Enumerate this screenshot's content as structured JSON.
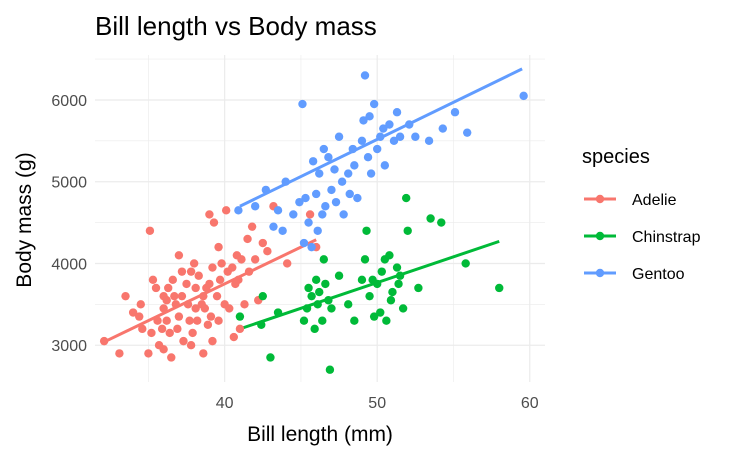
{
  "chart_data": {
    "type": "scatter",
    "title": "Bill length vs Body mass",
    "xlabel": "Bill length (mm)",
    "ylabel": "Body mass (g)",
    "xlim": [
      31.5,
      61
    ],
    "ylim": [
      2550,
      6550
    ],
    "xticks": [
      40,
      50,
      60
    ],
    "yticks": [
      3000,
      4000,
      5000,
      6000
    ],
    "grid": true,
    "legend": {
      "title": "species",
      "placement": "right"
    },
    "series": [
      {
        "name": "Adelie",
        "color": "#f8766d",
        "trend": [
          [
            32.1,
            3040
          ],
          [
            46.0,
            4290
          ]
        ],
        "points": [
          [
            32.1,
            3050
          ],
          [
            33.1,
            2900
          ],
          [
            33.5,
            3600
          ],
          [
            34.0,
            3400
          ],
          [
            34.4,
            3350
          ],
          [
            34.5,
            3500
          ],
          [
            34.6,
            3200
          ],
          [
            35.0,
            2900
          ],
          [
            35.1,
            4400
          ],
          [
            35.2,
            3150
          ],
          [
            35.3,
            3800
          ],
          [
            35.5,
            3700
          ],
          [
            35.6,
            3300
          ],
          [
            35.7,
            3000
          ],
          [
            35.9,
            3200
          ],
          [
            36.0,
            3600
          ],
          [
            36.0,
            3450
          ],
          [
            36.0,
            2950
          ],
          [
            36.2,
            3550
          ],
          [
            36.2,
            3300
          ],
          [
            36.3,
            3700
          ],
          [
            36.4,
            3150
          ],
          [
            36.5,
            2850
          ],
          [
            36.6,
            3800
          ],
          [
            36.7,
            3600
          ],
          [
            36.8,
            3500
          ],
          [
            36.9,
            3200
          ],
          [
            37.0,
            4100
          ],
          [
            37.0,
            3350
          ],
          [
            37.2,
            3900
          ],
          [
            37.2,
            3600
          ],
          [
            37.3,
            3050
          ],
          [
            37.5,
            3750
          ],
          [
            37.6,
            3500
          ],
          [
            37.7,
            3300
          ],
          [
            37.8,
            3900
          ],
          [
            37.8,
            3000
          ],
          [
            37.9,
            3150
          ],
          [
            38.0,
            4000
          ],
          [
            38.1,
            3700
          ],
          [
            38.1,
            3450
          ],
          [
            38.2,
            3300
          ],
          [
            38.3,
            3850
          ],
          [
            38.5,
            3500
          ],
          [
            38.6,
            3600
          ],
          [
            38.6,
            2900
          ],
          [
            38.7,
            3450
          ],
          [
            38.8,
            3700
          ],
          [
            38.9,
            3250
          ],
          [
            39.0,
            4600
          ],
          [
            39.0,
            3750
          ],
          [
            39.1,
            3350
          ],
          [
            39.2,
            3950
          ],
          [
            39.2,
            3050
          ],
          [
            39.3,
            4500
          ],
          [
            39.5,
            3600
          ],
          [
            39.6,
            4200
          ],
          [
            39.6,
            3300
          ],
          [
            39.7,
            3800
          ],
          [
            39.8,
            4000
          ],
          [
            40.0,
            3500
          ],
          [
            40.1,
            4650
          ],
          [
            40.2,
            3900
          ],
          [
            40.3,
            3450
          ],
          [
            40.5,
            3950
          ],
          [
            40.6,
            3100
          ],
          [
            40.7,
            3750
          ],
          [
            40.8,
            4100
          ],
          [
            40.9,
            3800
          ],
          [
            41.0,
            3200
          ],
          [
            41.1,
            4050
          ],
          [
            41.3,
            3500
          ],
          [
            41.5,
            4300
          ],
          [
            41.6,
            3900
          ],
          [
            41.8,
            4450
          ],
          [
            42.0,
            4050
          ],
          [
            42.2,
            3550
          ],
          [
            42.5,
            4250
          ],
          [
            42.8,
            4150
          ],
          [
            43.2,
            4700
          ],
          [
            44.1,
            4000
          ],
          [
            45.6,
            4600
          ],
          [
            46.0,
            4200
          ]
        ]
      },
      {
        "name": "Chinstrap",
        "color": "#00ba38",
        "trend": [
          [
            41.0,
            3200
          ],
          [
            58.0,
            4270
          ]
        ],
        "points": [
          [
            41.0,
            3350
          ],
          [
            42.4,
            3250
          ],
          [
            42.5,
            3600
          ],
          [
            43.0,
            2850
          ],
          [
            43.5,
            3400
          ],
          [
            45.2,
            3300
          ],
          [
            45.4,
            3450
          ],
          [
            45.5,
            3700
          ],
          [
            45.7,
            3600
          ],
          [
            45.9,
            3200
          ],
          [
            46.0,
            3800
          ],
          [
            46.1,
            3500
          ],
          [
            46.2,
            3650
          ],
          [
            46.4,
            3300
          ],
          [
            46.5,
            4050
          ],
          [
            46.6,
            3750
          ],
          [
            46.8,
            3550
          ],
          [
            46.9,
            2700
          ],
          [
            47.0,
            3450
          ],
          [
            47.5,
            3850
          ],
          [
            48.1,
            3500
          ],
          [
            48.5,
            3300
          ],
          [
            49.0,
            3800
          ],
          [
            49.2,
            4050
          ],
          [
            49.3,
            4400
          ],
          [
            49.5,
            3600
          ],
          [
            49.7,
            3800
          ],
          [
            49.8,
            3350
          ],
          [
            50.0,
            3750
          ],
          [
            50.2,
            3400
          ],
          [
            50.3,
            3900
          ],
          [
            50.5,
            4050
          ],
          [
            50.6,
            3300
          ],
          [
            50.8,
            4100
          ],
          [
            50.9,
            3550
          ],
          [
            51.0,
            3650
          ],
          [
            51.3,
            3950
          ],
          [
            51.4,
            3750
          ],
          [
            51.5,
            3850
          ],
          [
            51.7,
            3450
          ],
          [
            51.9,
            4800
          ],
          [
            52.0,
            4400
          ],
          [
            52.7,
            3700
          ],
          [
            53.5,
            4550
          ],
          [
            54.2,
            4500
          ],
          [
            55.8,
            4000
          ],
          [
            58.0,
            3700
          ]
        ]
      },
      {
        "name": "Gentoo",
        "color": "#619cff",
        "trend": [
          [
            41.0,
            4700
          ],
          [
            59.5,
            6380
          ]
        ],
        "points": [
          [
            40.9,
            4650
          ],
          [
            42.0,
            4700
          ],
          [
            42.7,
            4900
          ],
          [
            43.2,
            4450
          ],
          [
            43.5,
            4650
          ],
          [
            43.8,
            4400
          ],
          [
            44.0,
            5000
          ],
          [
            44.5,
            4600
          ],
          [
            44.9,
            4750
          ],
          [
            45.1,
            5950
          ],
          [
            45.2,
            4250
          ],
          [
            45.3,
            4800
          ],
          [
            45.5,
            4500
          ],
          [
            45.7,
            4200
          ],
          [
            45.8,
            5250
          ],
          [
            46.0,
            4850
          ],
          [
            46.1,
            4400
          ],
          [
            46.2,
            5100
          ],
          [
            46.4,
            4600
          ],
          [
            46.5,
            5400
          ],
          [
            46.6,
            4700
          ],
          [
            46.8,
            5300
          ],
          [
            47.0,
            4900
          ],
          [
            47.2,
            5150
          ],
          [
            47.3,
            4750
          ],
          [
            47.5,
            5550
          ],
          [
            47.7,
            5000
          ],
          [
            47.8,
            4600
          ],
          [
            48.1,
            5100
          ],
          [
            48.2,
            4850
          ],
          [
            48.4,
            5400
          ],
          [
            48.5,
            5200
          ],
          [
            48.7,
            4800
          ],
          [
            49.0,
            5500
          ],
          [
            49.1,
            5750
          ],
          [
            49.2,
            6300
          ],
          [
            49.4,
            5300
          ],
          [
            49.5,
            5800
          ],
          [
            49.6,
            5100
          ],
          [
            49.8,
            5950
          ],
          [
            50.0,
            5400
          ],
          [
            50.2,
            5550
          ],
          [
            50.4,
            5650
          ],
          [
            50.5,
            5200
          ],
          [
            50.8,
            5700
          ],
          [
            51.1,
            5500
          ],
          [
            51.3,
            5850
          ],
          [
            51.5,
            5550
          ],
          [
            52.1,
            5700
          ],
          [
            52.5,
            5550
          ],
          [
            53.4,
            5500
          ],
          [
            54.3,
            5650
          ],
          [
            55.1,
            5850
          ],
          [
            55.9,
            5600
          ],
          [
            59.6,
            6050
          ]
        ]
      }
    ]
  }
}
